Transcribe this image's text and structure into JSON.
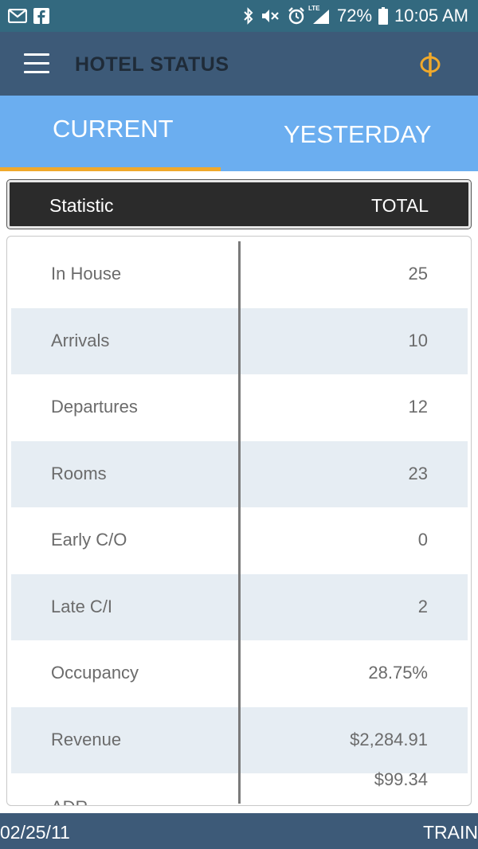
{
  "status_bar": {
    "battery_percent": "72%",
    "time": "10:05 AM",
    "network_label": "LTE",
    "left_icons": [
      "mail-icon",
      "facebook-icon"
    ],
    "right_icons": [
      "bluetooth-icon",
      "mute-icon",
      "alarm-icon",
      "signal-icon",
      "battery-icon"
    ]
  },
  "app_bar": {
    "title": "HOTEL STATUS",
    "menu_icon": "hamburger-menu-icon",
    "logo_icon": "phi-logo-icon",
    "accent_color": "#f0a92b"
  },
  "tabs": [
    {
      "label": "CURRENT",
      "selected": true
    },
    {
      "label": "YESTERDAY",
      "selected": false
    }
  ],
  "table": {
    "headers": [
      "Statistic",
      "TOTAL"
    ],
    "rows": [
      {
        "name": "In House",
        "value": "25"
      },
      {
        "name": "Arrivals",
        "value": "10"
      },
      {
        "name": "Departures",
        "value": "12"
      },
      {
        "name": "Rooms",
        "value": "23"
      },
      {
        "name": "Early C/O",
        "value": "0"
      },
      {
        "name": "Late C/I",
        "value": "2"
      },
      {
        "name": "Occupancy",
        "value": "28.75%"
      },
      {
        "name": "Revenue",
        "value": "$2,284.91"
      },
      {
        "name": "ADR",
        "value": "$99.34"
      }
    ]
  },
  "footer": {
    "date": "02/25/11",
    "mode": "TRAIN"
  }
}
